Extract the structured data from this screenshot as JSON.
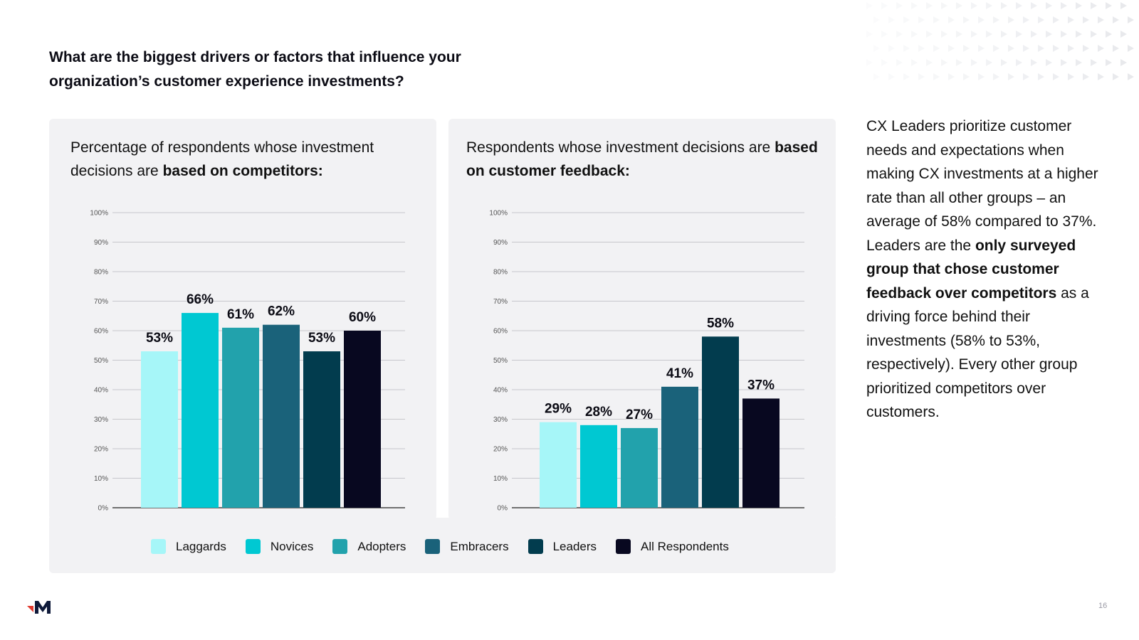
{
  "question": {
    "line1": "What are the biggest drivers or factors that influence your",
    "line2": "organization’s customer experience investments?"
  },
  "charts": {
    "left": {
      "title_normal": "Percentage of respondents whose investment decisions are ",
      "title_bold": "based on competitors:"
    },
    "right": {
      "title_normal": "Respondents whose investment decisions are ",
      "title_bold": "based on customer feedback:"
    }
  },
  "chart_data": [
    {
      "type": "bar",
      "title": "Percentage of respondents whose investment decisions are based on competitors:",
      "categories": [
        "Laggards",
        "Novices",
        "Adopters",
        "Embracers",
        "Leaders",
        "All Respondents"
      ],
      "values": [
        53,
        66,
        61,
        62,
        53,
        60
      ],
      "data_labels": [
        "53%",
        "66%",
        "61%",
        "62%",
        "53%",
        "60%"
      ],
      "ylim": [
        0,
        100
      ],
      "yticks": [
        "0%",
        "10%",
        "20%",
        "30%",
        "40%",
        "50%",
        "60%",
        "70%",
        "80%",
        "90%",
        "100%"
      ],
      "grid": true,
      "legend": "bottom"
    },
    {
      "type": "bar",
      "title": "Respondents whose investment decisions are based on customer feedback:",
      "categories": [
        "Laggards",
        "Novices",
        "Adopters",
        "Embracers",
        "Leaders",
        "All Respondents"
      ],
      "values": [
        29,
        28,
        27,
        41,
        58,
        37
      ],
      "data_labels": [
        "29%",
        "28%",
        "27%",
        "41%",
        "58%",
        "37%"
      ],
      "ylim": [
        0,
        100
      ],
      "yticks": [
        "0%",
        "10%",
        "20%",
        "30%",
        "40%",
        "50%",
        "60%",
        "70%",
        "80%",
        "90%",
        "100%"
      ],
      "grid": true,
      "legend": "bottom"
    }
  ],
  "legend": [
    {
      "label": "Laggards",
      "color": "#a6f6f8"
    },
    {
      "label": "Novices",
      "color": "#00c8d2"
    },
    {
      "label": "Adopters",
      "color": "#22a2ac"
    },
    {
      "label": "Embracers",
      "color": "#1a627a"
    },
    {
      "label": "Leaders",
      "color": "#023c4e"
    },
    {
      "label": "All Respondents",
      "color": "#080820"
    }
  ],
  "sidebar_text": {
    "p1": "CX Leaders prioritize customer needs and expectations when making CX investments at a higher rate than all other groups – an average of 58% compared to 37%. Leaders are the ",
    "b1": "only surveyed group that chose customer feedback over competitors",
    "p2": " as a driving force behind their investments (58% to 53%, respectively). Every other group prioritized competitors over customers."
  },
  "page_number": "16",
  "logo_icon": "m-logo-icon",
  "pattern_icon": "triangle-pattern-icon"
}
